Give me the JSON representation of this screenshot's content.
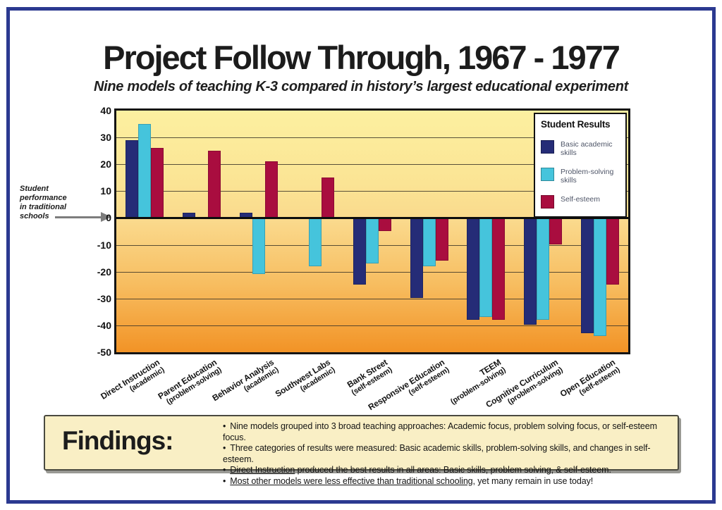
{
  "page": {
    "title": "Project Follow Through, 1967 - 1977",
    "subtitle": "Nine models of teaching K-3 compared in history’s largest educational experiment"
  },
  "annotation": {
    "text": "Student\nperformance\nin traditional\nschools"
  },
  "legend": {
    "title": "Student Results",
    "items": [
      {
        "label": "Basic academic\nskills",
        "color": "#252c77"
      },
      {
        "label": "Problem-solving\nskills",
        "color": "#45c4dc"
      },
      {
        "label": "Self-esteem",
        "color": "#a90d3f"
      }
    ]
  },
  "chart_data": {
    "type": "bar",
    "title": "Project Follow Through, 1967 - 1977",
    "categories": [
      {
        "name": "Direct Instruction",
        "focus": "(academic)"
      },
      {
        "name": "Parent Education",
        "focus": "(problem-solving)"
      },
      {
        "name": "Behavior Analysis",
        "focus": "(academic)"
      },
      {
        "name": "Southwest Labs",
        "focus": "(academic)"
      },
      {
        "name": "Bank Street",
        "focus": "(self-esteem)"
      },
      {
        "name": "Responsive Education",
        "focus": "(self-esteem)"
      },
      {
        "name": "TEEM",
        "focus": "(problem-solving)"
      },
      {
        "name": "Cognitive Curriculum",
        "focus": "(problem-solving)"
      },
      {
        "name": "Open Education",
        "focus": "(self-esteem)"
      }
    ],
    "series": [
      {
        "name": "Basic academic skills",
        "color": "#252c77",
        "values": [
          29,
          2,
          2,
          0,
          -25,
          -30,
          -38,
          -40,
          -43
        ]
      },
      {
        "name": "Problem-solving skills",
        "color": "#45c4dc",
        "values": [
          35,
          0,
          -21,
          -18,
          -17,
          -18,
          -37,
          -38,
          -44
        ]
      },
      {
        "name": "Self-esteem",
        "color": "#a90d3f",
        "values": [
          26,
          25,
          21,
          15,
          -5,
          -16,
          -38,
          -10,
          -25
        ]
      }
    ],
    "ylim": [
      -50,
      40
    ],
    "ytick_step": 10,
    "grid": true,
    "legend_position": "top-right",
    "baseline_annotation": "Student performance in traditional schools"
  },
  "findings": {
    "heading": "Findings:",
    "bullet_char": "•",
    "bullets": [
      [
        {
          "text": "Nine models grouped into 3 broad teaching approaches:  Academic focus, problem solving focus, or self-esteem focus.",
          "u": false
        }
      ],
      [
        {
          "text": "Three categories of results were measured:  Basic academic skills, problem-solving skills, and changes in self-esteem.",
          "u": false
        }
      ],
      [
        {
          "text": "Direct Instruction",
          "u": true
        },
        {
          "text": " produced the best results in all areas:  Basic skills, problem solving, & self-esteem.",
          "u": false
        }
      ],
      [
        {
          "text": "Most other models were less effective than traditional schooling",
          "u": true
        },
        {
          "text": ", yet many remain in use today!",
          "u": false
        }
      ]
    ]
  }
}
